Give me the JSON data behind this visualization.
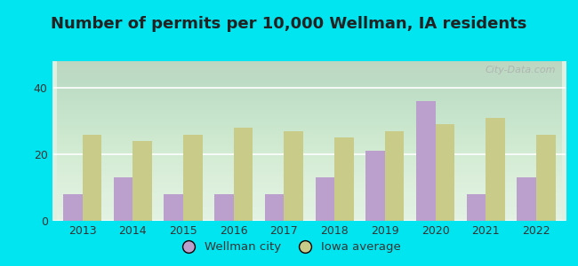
{
  "title": "Number of permits per 10,000 Wellman, IA residents",
  "years": [
    2013,
    2014,
    2015,
    2016,
    2017,
    2018,
    2019,
    2020,
    2021,
    2022
  ],
  "wellman_values": [
    8,
    13,
    8,
    8,
    8,
    13,
    21,
    36,
    8,
    13
  ],
  "iowa_values": [
    26,
    24,
    26,
    28,
    27,
    25,
    27,
    29,
    31,
    26
  ],
  "wellman_color": "#bb9fcc",
  "iowa_color": "#c8cc88",
  "background_outer": "#00e5f0",
  "background_plot": "#dff0e0",
  "ylabel_ticks": [
    0,
    20,
    40
  ],
  "ylim": [
    0,
    48
  ],
  "legend_wellman": "Wellman city",
  "legend_iowa": "Iowa average",
  "title_fontsize": 13,
  "tick_fontsize": 9,
  "legend_fontsize": 9.5,
  "bar_width": 0.38
}
